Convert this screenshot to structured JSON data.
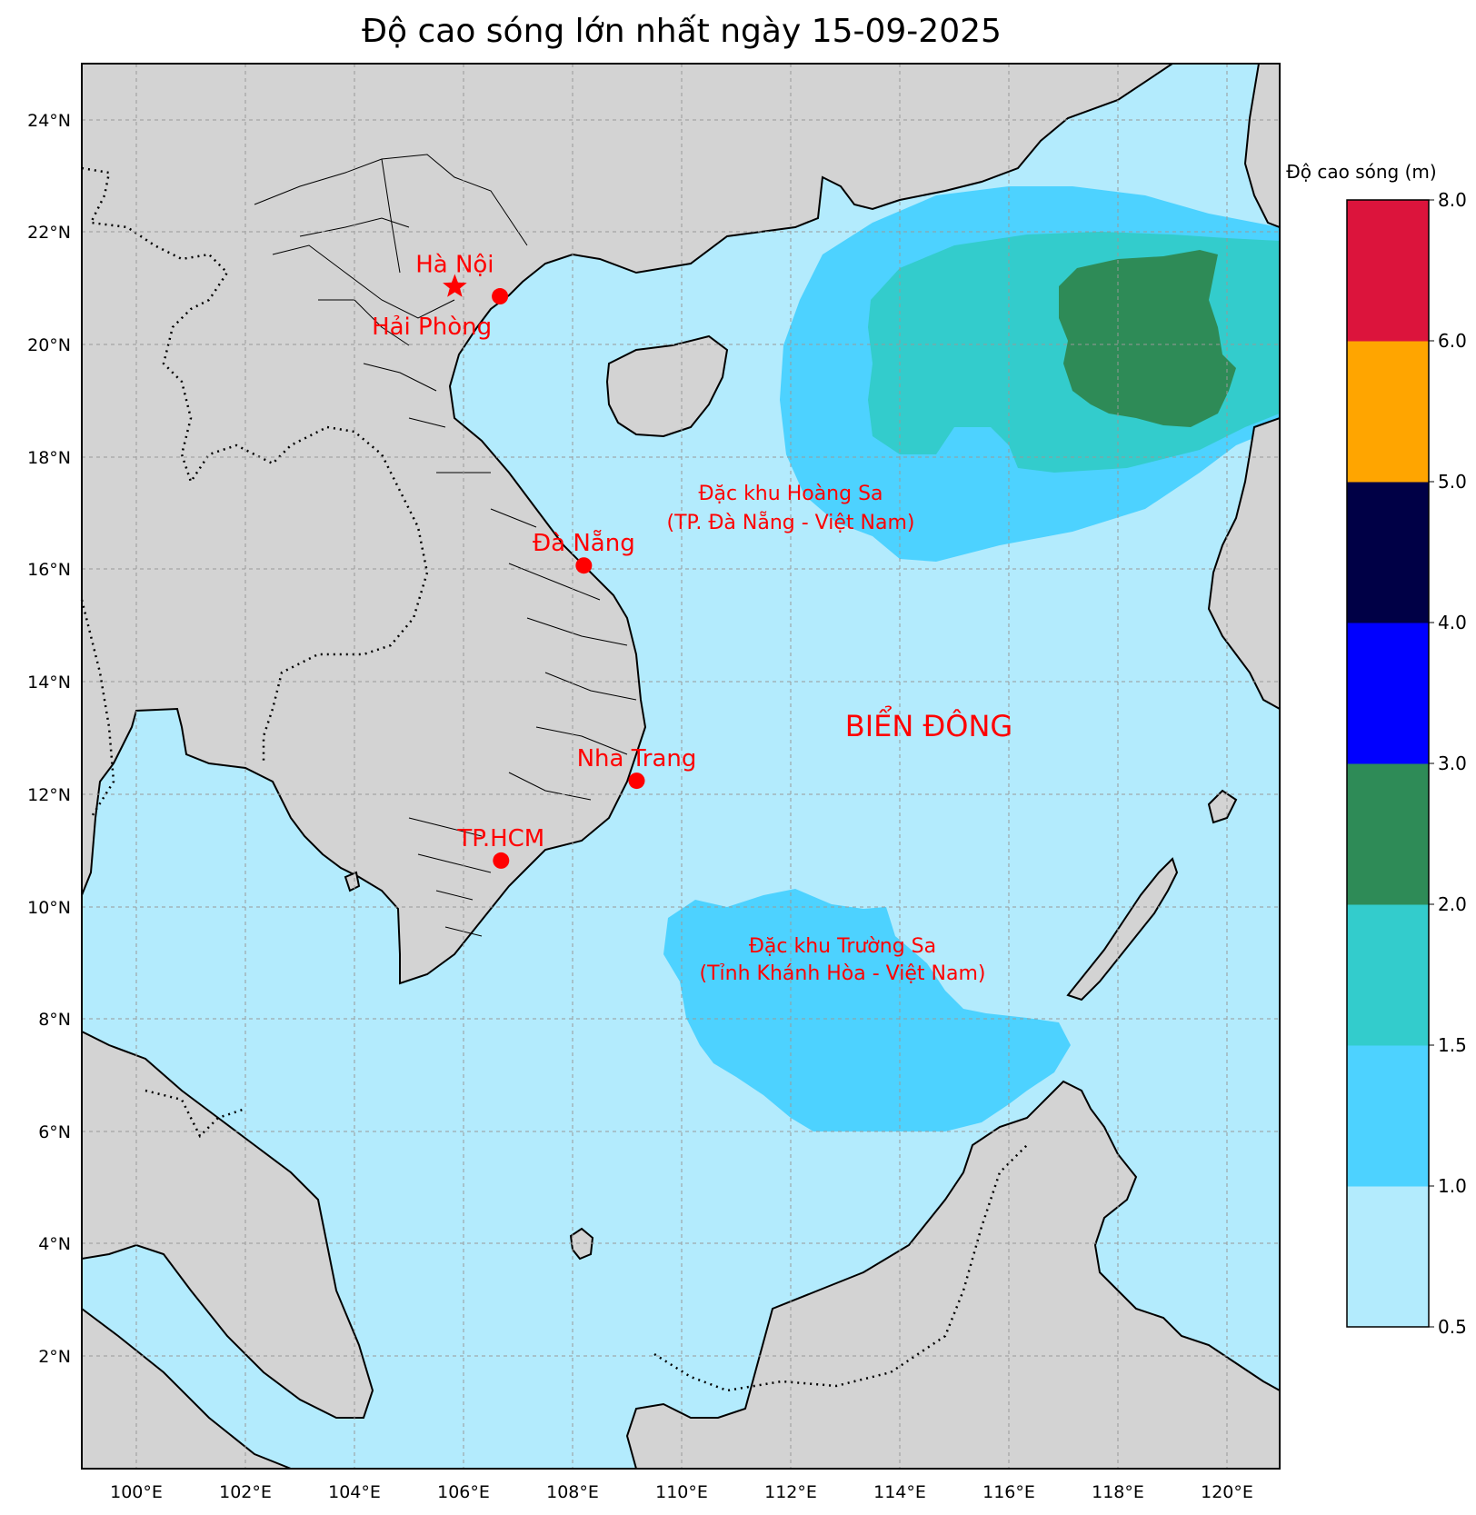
{
  "title": "Độ cao sóng lớn nhất ngày 15-09-2025",
  "colors": {
    "land": "#d3d3d3",
    "sea_0_5_1": "#b3ebfd",
    "wave_1_1_5": "#4dd2ff",
    "wave_1_5_2": "#33cccc",
    "wave_2_3": "#2e8b57",
    "marker": "#ff0000"
  },
  "axes": {
    "lon_ticks": [
      "100°E",
      "102°E",
      "104°E",
      "106°E",
      "108°E",
      "110°E",
      "112°E",
      "114°E",
      "116°E",
      "118°E",
      "120°E"
    ],
    "lat_ticks": [
      "2°N",
      "4°N",
      "6°N",
      "8°N",
      "10°N",
      "12°N",
      "14°N",
      "16°N",
      "18°N",
      "20°N",
      "22°N",
      "24°N"
    ],
    "lon_range": [
      99,
      121
    ],
    "lat_range": [
      0,
      25
    ]
  },
  "cities": [
    {
      "name": "Hà Nội",
      "lon": 105.85,
      "lat": 21.03,
      "symbol": "star"
    },
    {
      "name": "Hải Phòng",
      "lon": 106.68,
      "lat": 20.86,
      "symbol": "dot"
    },
    {
      "name": "Đà Nẵng",
      "lon": 108.22,
      "lat": 16.07,
      "symbol": "dot"
    },
    {
      "name": "Nha Trang",
      "lon": 109.19,
      "lat": 12.24,
      "symbol": "dot"
    },
    {
      "name": "TP.HCM",
      "lon": 106.7,
      "lat": 10.82,
      "symbol": "dot"
    }
  ],
  "region_labels": {
    "hoang_sa_line1": "Đặc khu Hoàng Sa",
    "hoang_sa_line2": "(TP. Đà Nẵng - Việt Nam)",
    "truong_sa_line1": "Đặc khu Trường Sa",
    "truong_sa_line2": "(Tỉnh Khánh Hòa - Việt Nam)",
    "sea_name": "BIỂN ĐÔNG"
  },
  "colorbar": {
    "title": "Độ cao sóng (m)",
    "bounds": [
      "0.5",
      "1.0",
      "1.5",
      "2.0",
      "3.0",
      "4.0",
      "5.0",
      "6.0",
      "8.0"
    ],
    "colors": [
      "#b3ebfd",
      "#4dd2ff",
      "#33cccc",
      "#2e8b57",
      "#0000ff",
      "#000046",
      "#ffa500",
      "#dc143c"
    ]
  }
}
